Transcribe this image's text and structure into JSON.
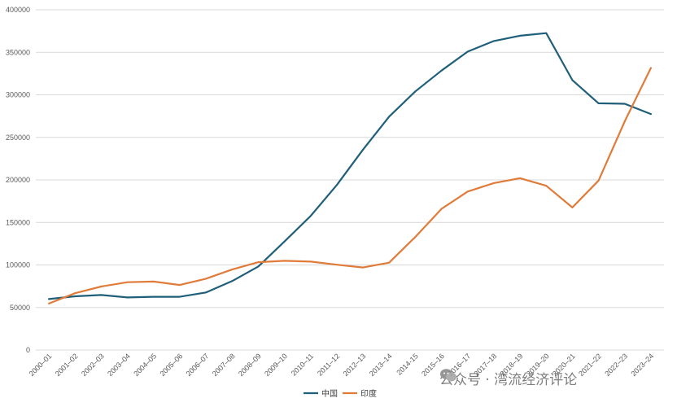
{
  "chart_data": {
    "type": "line",
    "title": "",
    "xlabel": "",
    "ylabel": "",
    "ylim": [
      0,
      400000
    ],
    "y_ticks": [
      "0",
      "50000",
      "100000",
      "150000",
      "200000",
      "250000",
      "300000",
      "350000",
      "400000"
    ],
    "grid": true,
    "legend": "bottom",
    "categories": [
      "2000–01",
      "2001–02",
      "2002–03",
      "2003–04",
      "2004–05",
      "2005–06",
      "2006–07",
      "2007–08",
      "2008–09",
      "2009–10",
      "2010–11",
      "2011–12",
      "2012–13",
      "2013–14",
      "2014-15",
      "2015–16",
      "2016–17",
      "2017–18",
      "2018–19",
      "2019–20",
      "2020–21",
      "2021–22",
      "2022–23",
      "2023–24"
    ],
    "series": [
      {
        "name": "中国",
        "color": "#1f5f7a",
        "values": [
          59900,
          63200,
          64700,
          61800,
          62600,
          62600,
          67700,
          81100,
          98200,
          127600,
          157600,
          194000,
          235600,
          274400,
          304000,
          328500,
          350800,
          363300,
          369500,
          372500,
          317300,
          290000,
          289500,
          277400
        ]
      },
      {
        "name": "印度",
        "color": "#e07b39",
        "values": [
          54600,
          66800,
          74600,
          79700,
          80500,
          76500,
          83800,
          94600,
          103300,
          104900,
          103900,
          100300,
          97000,
          102700,
          132900,
          165900,
          186300,
          196300,
          202000,
          193100,
          167600,
          199200,
          268900,
          331600
        ]
      }
    ]
  },
  "watermark": {
    "icon": "wechat-icon",
    "text": "公众号 · 湾流经济评论"
  }
}
